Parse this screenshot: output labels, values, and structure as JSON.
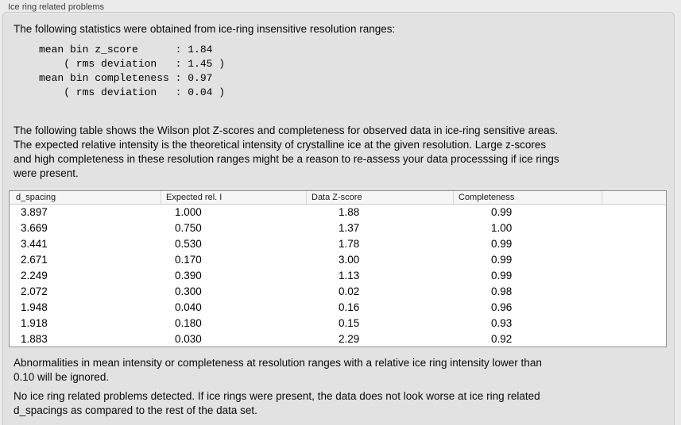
{
  "panel": {
    "title": "Ice ring related problems"
  },
  "stats": {
    "intro": "The following statistics were obtained from ice-ring insensitive resolution ranges:",
    "mono_lines": [
      "mean bin z_score      : 1.84",
      "    ( rms deviation   : 1.45 )",
      "mean bin completeness : 0.97",
      "    ( rms deviation   : 0.04 )"
    ]
  },
  "description_lines": [
    "The following table shows the Wilson plot Z-scores and completeness for observed data in ice-ring sensitive areas.",
    "The expected relative intensity is the theoretical intensity of crystalline ice at the given resolution. Large z-scores",
    "and high completeness in these resolution ranges might be a reason to re-assess your data processsing if ice rings",
    "were present."
  ],
  "table": {
    "columns": [
      "d_spacing",
      "Expected rel. I",
      "Data Z-score",
      "Completeness",
      ""
    ],
    "rows": [
      [
        "3.897",
        "1.000",
        "1.88",
        "0.99"
      ],
      [
        "3.669",
        "0.750",
        "1.37",
        "1.00"
      ],
      [
        "3.441",
        "0.530",
        "1.78",
        "0.99"
      ],
      [
        "2.671",
        "0.170",
        "3.00",
        "0.99"
      ],
      [
        "2.249",
        "0.390",
        "1.13",
        "0.99"
      ],
      [
        "2.072",
        "0.300",
        "0.02",
        "0.98"
      ],
      [
        "1.948",
        "0.040",
        "0.16",
        "0.96"
      ],
      [
        "1.918",
        "0.180",
        "0.15",
        "0.93"
      ],
      [
        "1.883",
        "0.030",
        "2.29",
        "0.92"
      ]
    ]
  },
  "notes": {
    "ignore_lines": [
      "Abnormalities in mean intensity or completeness at resolution ranges with a relative ice ring intensity lower than",
      "0.10 will be ignored."
    ],
    "conclusion_lines": [
      "No ice ring related problems detected. If ice rings were present, the data does not look worse at ice ring related",
      "d_spacings as compared to the rest of the data set."
    ]
  },
  "colors": {
    "window_background": "#ebebeb",
    "panel_background": "#e2e2e2",
    "table_background": "#ffffff",
    "table_header_background": "#f6f6f6",
    "table_border": "#8f8f8f"
  }
}
